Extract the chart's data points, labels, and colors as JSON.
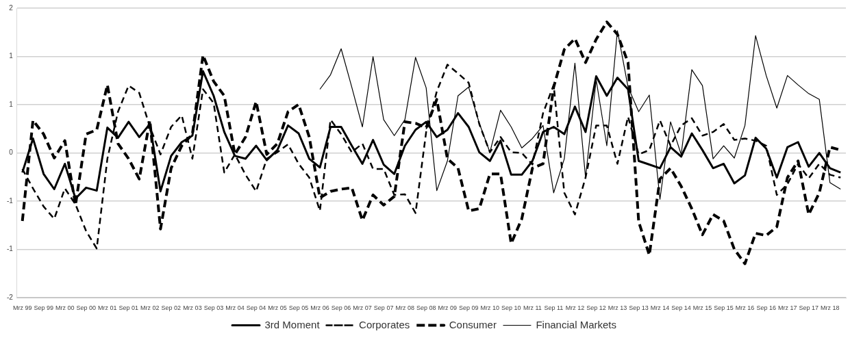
{
  "chart_data": {
    "type": "line",
    "categories": [
      "Mrz 99",
      null,
      "Sep 99",
      null,
      "Mrz 00",
      null,
      "Sep 00",
      null,
      "Mrz 01",
      null,
      "Sep 01",
      null,
      "Mrz 02",
      null,
      "Sep 02",
      null,
      "Mrz 03",
      null,
      "Sep 03",
      null,
      "Mrz 04",
      null,
      "Sep 04",
      null,
      "Mrz 05",
      null,
      "Sep 05",
      null,
      "Mrz 06",
      null,
      "Sep 06",
      null,
      "Mrz 07",
      null,
      "Sep 07",
      null,
      "Mrz 08",
      null,
      "Sep 08",
      null,
      "Mrz 09",
      null,
      "Sep 09",
      null,
      "Mrz 10",
      null,
      "Sep 10",
      null,
      "Mrz 11",
      null,
      "Sep 11",
      null,
      "Mrz 12",
      null,
      "Sep 12",
      null,
      "Mrz 13",
      null,
      "Sep 13",
      null,
      "Mrz 14",
      null,
      "Sep 14",
      null,
      "Mrz 15",
      null,
      "Sep 15",
      null,
      "Mrz 16",
      null,
      "Sep 16",
      null,
      "Mrz 17",
      null,
      "Sep 17",
      null,
      "Mrz 18",
      null
    ],
    "series": [
      {
        "name": "3rd Moment",
        "color": "#000000",
        "line_style": "solid",
        "values": [
          -0.27,
          0.2,
          -0.29,
          -0.5,
          -0.15,
          -0.63,
          -0.48,
          -0.52,
          0.35,
          0.21,
          0.43,
          0.22,
          0.4,
          -0.53,
          -0.04,
          0.15,
          0.24,
          1.13,
          0.79,
          0.29,
          -0.04,
          -0.08,
          0.1,
          -0.1,
          0.04,
          0.38,
          0.27,
          -0.08,
          -0.2,
          0.36,
          0.36,
          0.1,
          -0.15,
          0.18,
          -0.16,
          -0.29,
          0.1,
          0.32,
          0.43,
          0.22,
          0.32,
          0.55,
          0.36,
          0.01,
          -0.11,
          0.17,
          -0.3,
          -0.3,
          -0.11,
          0.29,
          0.36,
          0.26,
          0.64,
          0.29,
          1.06,
          0.79,
          1.04,
          0.88,
          -0.11,
          -0.16,
          -0.21,
          0.08,
          -0.05,
          0.27,
          0.04,
          -0.21,
          -0.15,
          -0.42,
          -0.31,
          0.21,
          0.06,
          -0.34,
          0.08,
          0.15,
          -0.19,
          0,
          -0.21,
          -0.27
        ]
      },
      {
        "name": "Corporates",
        "color": "#000000",
        "line_style": "dashed",
        "values": [
          -0.22,
          -0.49,
          -0.74,
          -0.91,
          -0.49,
          -0.71,
          -1.08,
          -1.32,
          -0.08,
          0.57,
          0.93,
          0.83,
          0.36,
          -0.02,
          0.36,
          0.52,
          -0.08,
          0.88,
          0.69,
          -0.27,
          -0.02,
          -0.3,
          -0.53,
          -0.08,
          0.01,
          0.12,
          -0.15,
          -0.34,
          -0.8,
          0.46,
          0.26,
          0.01,
          0.13,
          -0.22,
          -0.22,
          -0.58,
          -0.57,
          -0.83,
          0.29,
          0.85,
          1.22,
          1.1,
          0.97,
          0.4,
          0.01,
          0.22,
          0.01,
          0,
          -0.16,
          0.55,
          0.94,
          -0.55,
          -0.85,
          -0.34,
          0.38,
          0.38,
          -0.15,
          0.5,
          -0.02,
          0.04,
          0.45,
          0.1,
          0.38,
          0.48,
          0.24,
          0.29,
          0.4,
          0.18,
          0.2,
          0.17,
          0.1,
          -0.58,
          -0.43,
          -0.15,
          -0.35,
          -0.15,
          -0.3,
          -0.34
        ]
      },
      {
        "name": "Consumer",
        "color": "#000000",
        "line_style": "dashed",
        "values": [
          -0.94,
          0.45,
          0.26,
          -0.07,
          0.17,
          -0.72,
          0.26,
          0.32,
          0.94,
          0.13,
          -0.08,
          -0.36,
          0.45,
          -1.05,
          -0.21,
          0.1,
          0.26,
          1.35,
          0.99,
          0.79,
          -0.02,
          0.22,
          0.71,
          -0.02,
          0.13,
          0.57,
          0.67,
          0.22,
          -0.62,
          -0.53,
          -0.5,
          -0.48,
          -0.93,
          -0.58,
          -0.72,
          -0.6,
          0.43,
          0.41,
          0.35,
          0.74,
          -0.08,
          -0.21,
          -0.8,
          -0.77,
          -0.29,
          -0.29,
          -1.25,
          -0.91,
          -0.21,
          -0.15,
          0.91,
          1.43,
          1.58,
          1.25,
          1.57,
          1.81,
          1.64,
          1.25,
          -0.95,
          -1.41,
          -0.36,
          -0.21,
          -0.46,
          -0.77,
          -1.13,
          -0.85,
          -0.94,
          -1.33,
          -1.53,
          -1.11,
          -1.14,
          -1.02,
          -0.34,
          -0.11,
          -0.85,
          -0.55,
          0.08,
          0.04
        ]
      },
      {
        "name": "Financial Markets",
        "color": "#000000",
        "line_style": "solid",
        "values": [
          null,
          null,
          null,
          null,
          null,
          null,
          null,
          null,
          null,
          null,
          null,
          null,
          null,
          null,
          null,
          null,
          null,
          null,
          null,
          null,
          null,
          null,
          null,
          null,
          null,
          null,
          null,
          null,
          0.88,
          1.08,
          1.44,
          0.91,
          0.36,
          1.33,
          0.46,
          0.24,
          0.46,
          1.32,
          0.9,
          -0.52,
          -0.11,
          0.79,
          0.91,
          0.41,
          0.01,
          0.59,
          0.36,
          0.07,
          0.2,
          0.38,
          -0.55,
          -0.08,
          1.24,
          -0.34,
          1.01,
          0.1,
          1.69,
          0.91,
          0.57,
          0.8,
          -0.64,
          0.43,
          -0.02,
          1.15,
          0.93,
          -0.08,
          0.1,
          -0.07,
          0.38,
          1.62,
          1.07,
          0.62,
          1.07,
          0.94,
          0.82,
          0.74,
          -0.41,
          -0.5
        ]
      }
    ],
    "ylim": [
      -2,
      2
    ],
    "yticks": [
      -2,
      {
        "value": -1.333,
        "label": "-1"
      },
      {
        "value": -0.667,
        "label": "-1"
      },
      0,
      {
        "value": 0.667,
        "label": "1"
      },
      {
        "value": 1.333,
        "label": "1"
      },
      2
    ],
    "grid": "y",
    "legend": "bottom",
    "marker": "none"
  }
}
